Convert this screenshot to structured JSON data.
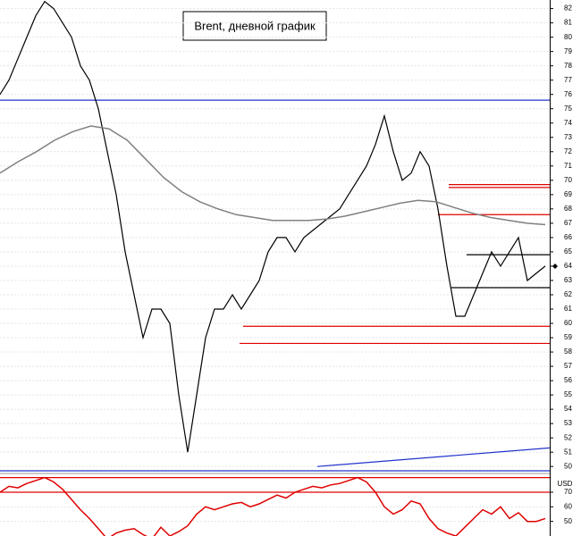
{
  "chart_data": [
    {
      "type": "line",
      "title": "Brent, дневной график",
      "series": [
        {
          "name": null,
          "color": "#000000",
          "values": [
            76,
            77,
            78.5,
            80,
            81.5,
            82.5,
            82,
            81,
            80,
            78,
            77,
            75,
            72,
            69,
            65,
            62,
            59,
            61,
            61,
            60,
            55,
            51,
            55,
            59,
            61,
            61,
            62,
            61,
            62,
            63,
            65,
            66,
            66,
            65,
            66,
            66.5,
            67,
            67.5,
            68,
            69,
            70,
            71,
            72.5,
            74.5,
            72,
            70,
            70.5,
            72,
            71,
            68,
            64,
            60.5,
            60.5,
            62,
            63.5,
            65,
            64,
            65,
            66,
            63,
            63.5,
            64
          ]
        },
        {
          "name": null,
          "color": "#808080",
          "values": [
            70.5,
            71.3,
            72,
            72.8,
            73.4,
            73.8,
            73.6,
            72.8,
            71.5,
            70.2,
            69.2,
            68.5,
            68,
            67.6,
            67.4,
            67.2,
            67.2,
            67.2,
            67.3,
            67.5,
            67.8,
            68.1,
            68.4,
            68.6,
            68.5,
            68.1,
            67.7,
            67.4,
            67.2,
            67.0,
            66.9
          ]
        }
      ],
      "levels": [
        {
          "value": 75.6,
          "color": "#2233cc",
          "from": 0
        },
        {
          "value": 49.7,
          "color": "#2233cc",
          "from": 0
        },
        {
          "value": 69.7,
          "color": "#e00000",
          "from": 50.2
        },
        {
          "value": 69.5,
          "color": "#e00000",
          "from": 50.2
        },
        {
          "value": 67.6,
          "color": "#e00000",
          "from": 49
        },
        {
          "value": 59.8,
          "color": "#e00000",
          "from": 27.2
        },
        {
          "value": 58.6,
          "color": "#e00000",
          "from": 26.8
        },
        {
          "value": 64.8,
          "color": "#000000",
          "from": 52.2
        },
        {
          "value": 62.5,
          "color": "#000000",
          "from": 50.5
        }
      ],
      "trendline": {
        "color": "#2233cc",
        "from": [
          35.5,
          50
        ],
        "to": [
          61.5,
          51.3
        ]
      },
      "ylim": [
        49.7,
        82.6
      ],
      "yticks": [
        50,
        51,
        52,
        53,
        54,
        55,
        56,
        57,
        58,
        59,
        60,
        61,
        62,
        63,
        64,
        65,
        66,
        67,
        68,
        69,
        70,
        71,
        72,
        73,
        74,
        75,
        76,
        77,
        78,
        79,
        80,
        81,
        82
      ],
      "grid": true
    },
    {
      "type": "line",
      "axis_label": "USD",
      "series": [
        {
          "name": null,
          "color": "#e00000",
          "values": [
            70,
            74,
            73,
            76,
            78,
            80,
            77,
            72,
            65,
            58,
            52,
            45,
            38,
            42,
            44,
            45,
            41,
            38,
            46,
            40,
            43,
            47,
            55,
            60,
            58,
            60,
            62,
            63,
            60,
            62,
            65,
            68,
            66,
            70,
            72,
            74,
            73,
            75,
            76,
            78,
            80,
            77,
            70,
            60,
            55,
            58,
            64,
            62,
            52,
            45,
            42,
            40,
            46,
            52,
            58,
            55,
            60,
            52,
            56,
            50,
            50,
            52
          ]
        }
      ],
      "levels": [
        {
          "value": 80,
          "color": "#e00000",
          "from": 0
        },
        {
          "value": 70,
          "color": "#e00000",
          "from": 0
        }
      ],
      "ylim": [
        40,
        81
      ],
      "yticks": [
        50,
        60,
        70
      ],
      "grid": true
    }
  ]
}
